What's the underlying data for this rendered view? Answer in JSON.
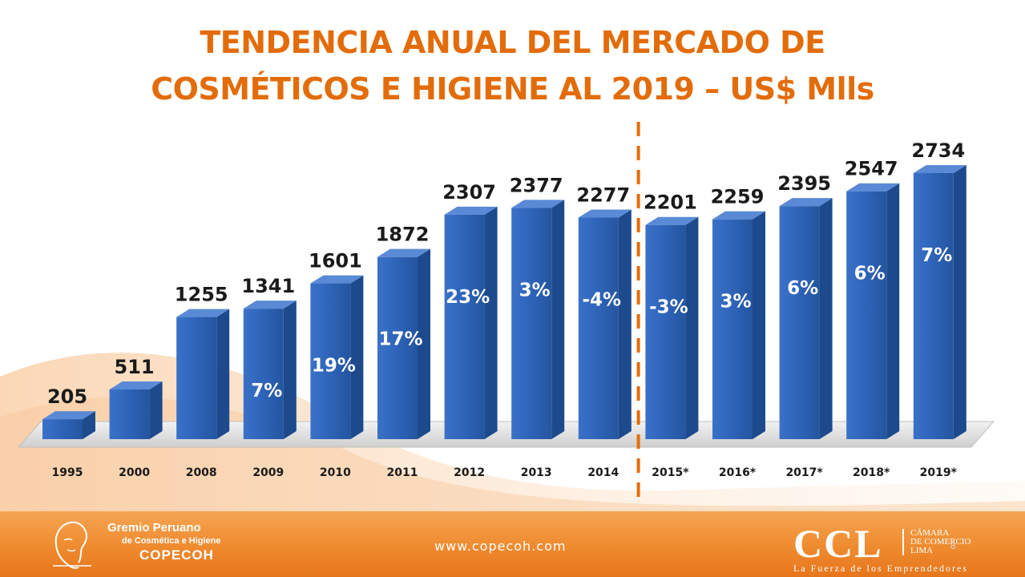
{
  "title": {
    "line1": "TENDENCIA ANUAL DEL MERCADO DE",
    "line2": "COSMÉTICOS E HIGIENE  AL 2019 – US$ Mlls"
  },
  "chart_data": {
    "type": "bar",
    "categories": [
      "1995",
      "2000",
      "2008",
      "2009",
      "2010",
      "2011",
      "2012",
      "2013",
      "2014",
      "2015*",
      "2016*",
      "2017*",
      "2018*",
      "2019*"
    ],
    "values": [
      205,
      511,
      1255,
      1341,
      1601,
      1872,
      2307,
      2377,
      2277,
      2201,
      2259,
      2395,
      2547,
      2734
    ],
    "growth_labels": [
      "",
      "",
      "",
      "7%",
      "19%",
      "17%",
      "23%",
      "3%",
      "-4%",
      "-3%",
      "3%",
      "6%",
      "6%",
      "7%"
    ],
    "ylim": [
      0,
      2800
    ],
    "projection_divider_after": "2014",
    "colors": {
      "bar": "#2e63b8",
      "bar_side": "#1d4a8c",
      "bar_top": "#5a8ad6",
      "divider": "#e36c0a",
      "title": "#e36c0a"
    },
    "legend": "none",
    "grid": false
  },
  "footer": {
    "org_line1": "Gremio Peruano",
    "org_line2": "de Cosmética e Higiene",
    "org_line3": "COPECOH",
    "url": "www.copecoh.com",
    "ccl": "CCL",
    "camara_line1": "CÁMARA",
    "camara_line2": "DE COMERCIO",
    "camara_line3": "LIMA",
    "tagline": "La Fuerza de los Emprendedores",
    "page_number": "8"
  },
  "icons": [
    "face-profile-logo-icon"
  ]
}
